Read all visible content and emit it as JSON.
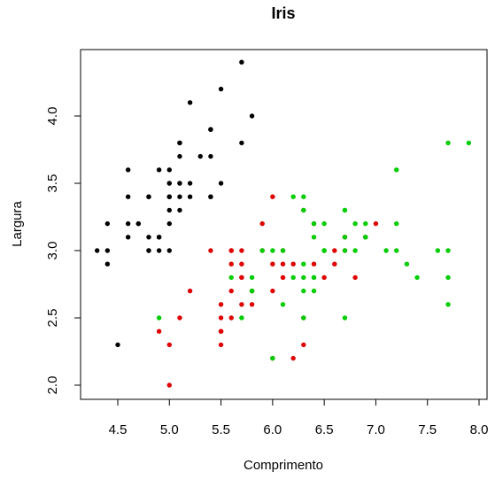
{
  "chart_data": {
    "type": "scatter",
    "title": "Iris",
    "xlabel": "Comprimento",
    "ylabel": "Largura",
    "xlim": [
      4.3,
      7.9
    ],
    "ylim": [
      2.0,
      4.4
    ],
    "xticks": [
      "4.5",
      "5.0",
      "5.5",
      "6.0",
      "6.5",
      "7.0",
      "7.5",
      "8.0"
    ],
    "yticks": [
      "2.0",
      "2.5",
      "3.0",
      "3.5",
      "4.0"
    ],
    "grid": false,
    "legend": "none",
    "series": [
      {
        "color": "#000000",
        "points": [
          [
            5.1,
            3.5
          ],
          [
            4.9,
            3.0
          ],
          [
            4.7,
            3.2
          ],
          [
            4.6,
            3.1
          ],
          [
            5.0,
            3.6
          ],
          [
            5.4,
            3.9
          ],
          [
            4.6,
            3.4
          ],
          [
            5.0,
            3.4
          ],
          [
            4.4,
            2.9
          ],
          [
            4.9,
            3.1
          ],
          [
            5.4,
            3.7
          ],
          [
            4.8,
            3.4
          ],
          [
            4.8,
            3.0
          ],
          [
            4.3,
            3.0
          ],
          [
            5.8,
            4.0
          ],
          [
            5.7,
            4.4
          ],
          [
            5.4,
            3.9
          ],
          [
            5.1,
            3.5
          ],
          [
            5.7,
            3.8
          ],
          [
            5.1,
            3.8
          ],
          [
            5.4,
            3.4
          ],
          [
            5.1,
            3.7
          ],
          [
            4.6,
            3.6
          ],
          [
            5.1,
            3.3
          ],
          [
            4.8,
            3.4
          ],
          [
            5.0,
            3.0
          ],
          [
            5.0,
            3.4
          ],
          [
            5.2,
            3.5
          ],
          [
            5.2,
            3.4
          ],
          [
            4.7,
            3.2
          ],
          [
            4.8,
            3.1
          ],
          [
            5.4,
            3.4
          ],
          [
            5.2,
            4.1
          ],
          [
            5.5,
            4.2
          ],
          [
            4.9,
            3.1
          ],
          [
            5.0,
            3.2
          ],
          [
            5.5,
            3.5
          ],
          [
            4.9,
            3.6
          ],
          [
            4.4,
            3.0
          ],
          [
            5.1,
            3.4
          ],
          [
            5.0,
            3.5
          ],
          [
            4.5,
            2.3
          ],
          [
            4.4,
            3.2
          ],
          [
            5.0,
            3.5
          ],
          [
            5.1,
            3.8
          ],
          [
            4.8,
            3.0
          ],
          [
            5.1,
            3.8
          ],
          [
            4.6,
            3.2
          ],
          [
            5.3,
            3.7
          ],
          [
            5.0,
            3.3
          ]
        ]
      },
      {
        "color": "#df0000",
        "points": [
          [
            7.0,
            3.2
          ],
          [
            6.4,
            3.2
          ],
          [
            6.9,
            3.1
          ],
          [
            5.5,
            2.3
          ],
          [
            6.5,
            2.8
          ],
          [
            5.7,
            2.8
          ],
          [
            6.3,
            3.3
          ],
          [
            4.9,
            2.4
          ],
          [
            6.6,
            2.9
          ],
          [
            5.2,
            2.7
          ],
          [
            5.0,
            2.0
          ],
          [
            5.9,
            3.0
          ],
          [
            6.0,
            2.2
          ],
          [
            6.1,
            2.9
          ],
          [
            5.6,
            2.9
          ],
          [
            6.7,
            3.1
          ],
          [
            5.6,
            3.0
          ],
          [
            5.8,
            2.7
          ],
          [
            6.2,
            2.2
          ],
          [
            5.6,
            2.5
          ],
          [
            5.9,
            3.2
          ],
          [
            6.1,
            2.8
          ],
          [
            6.3,
            2.5
          ],
          [
            6.1,
            2.8
          ],
          [
            6.4,
            2.9
          ],
          [
            6.6,
            3.0
          ],
          [
            6.8,
            2.8
          ],
          [
            6.7,
            3.0
          ],
          [
            6.0,
            2.9
          ],
          [
            5.7,
            2.6
          ],
          [
            5.5,
            2.4
          ],
          [
            5.5,
            2.4
          ],
          [
            5.8,
            2.7
          ],
          [
            6.0,
            2.7
          ],
          [
            5.4,
            3.0
          ],
          [
            6.0,
            3.4
          ],
          [
            6.7,
            3.1
          ],
          [
            6.3,
            2.3
          ],
          [
            5.6,
            3.0
          ],
          [
            5.5,
            2.5
          ],
          [
            5.5,
            2.6
          ],
          [
            6.1,
            3.0
          ],
          [
            5.8,
            2.6
          ],
          [
            5.0,
            2.3
          ],
          [
            5.6,
            2.7
          ],
          [
            5.7,
            3.0
          ],
          [
            5.7,
            2.9
          ],
          [
            6.2,
            2.9
          ],
          [
            5.1,
            2.5
          ],
          [
            5.7,
            2.8
          ]
        ]
      },
      {
        "color": "#00cd00",
        "points": [
          [
            6.3,
            3.3
          ],
          [
            5.8,
            2.7
          ],
          [
            7.1,
            3.0
          ],
          [
            6.3,
            2.9
          ],
          [
            6.5,
            3.0
          ],
          [
            7.6,
            3.0
          ],
          [
            4.9,
            2.5
          ],
          [
            7.3,
            2.9
          ],
          [
            6.7,
            2.5
          ],
          [
            7.2,
            3.6
          ],
          [
            6.5,
            3.2
          ],
          [
            6.4,
            2.7
          ],
          [
            6.8,
            3.0
          ],
          [
            5.7,
            2.5
          ],
          [
            5.8,
            2.8
          ],
          [
            6.4,
            3.2
          ],
          [
            6.5,
            3.0
          ],
          [
            7.7,
            3.8
          ],
          [
            7.7,
            2.6
          ],
          [
            6.0,
            2.2
          ],
          [
            6.9,
            3.2
          ],
          [
            5.6,
            2.8
          ],
          [
            7.7,
            2.8
          ],
          [
            6.3,
            2.7
          ],
          [
            6.7,
            3.3
          ],
          [
            7.2,
            3.2
          ],
          [
            6.2,
            2.8
          ],
          [
            6.1,
            3.0
          ],
          [
            6.4,
            2.8
          ],
          [
            7.2,
            3.0
          ],
          [
            7.4,
            2.8
          ],
          [
            7.9,
            3.8
          ],
          [
            6.4,
            2.8
          ],
          [
            6.3,
            2.8
          ],
          [
            6.1,
            2.6
          ],
          [
            7.7,
            3.0
          ],
          [
            6.3,
            3.4
          ],
          [
            6.4,
            3.1
          ],
          [
            6.0,
            3.0
          ],
          [
            6.9,
            3.1
          ],
          [
            6.7,
            3.1
          ],
          [
            6.9,
            3.1
          ],
          [
            5.8,
            2.7
          ],
          [
            6.8,
            3.2
          ],
          [
            6.7,
            3.3
          ],
          [
            6.7,
            3.0
          ],
          [
            6.3,
            2.5
          ],
          [
            6.5,
            3.0
          ],
          [
            6.2,
            3.4
          ],
          [
            5.9,
            3.0
          ]
        ]
      }
    ]
  }
}
